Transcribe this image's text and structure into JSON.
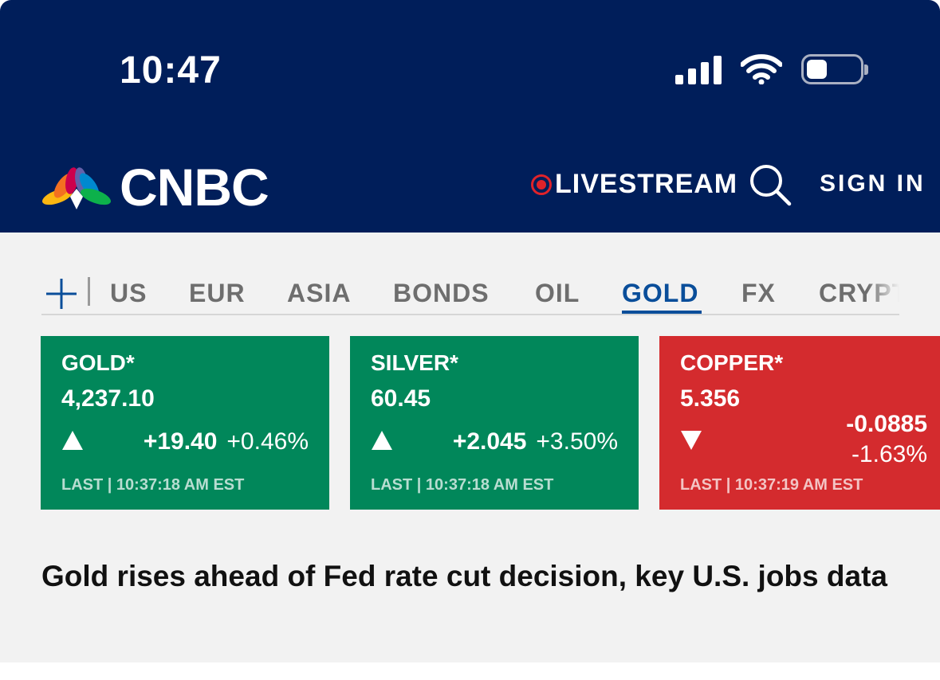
{
  "status_bar": {
    "time": "10:47"
  },
  "header": {
    "brand": "CNBC",
    "livestream_label": "LIVESTREAM",
    "sign_in_label": "SIGN IN",
    "background": "#001e5a",
    "live_color": "#e0232a"
  },
  "tabs": {
    "items": [
      "US",
      "EUR",
      "ASIA",
      "BONDS",
      "OIL",
      "GOLD",
      "FX",
      "CRYPTO"
    ],
    "active": "GOLD",
    "active_color": "#0a4e9a"
  },
  "cards": [
    {
      "name": "GOLD*",
      "price": "4,237.10",
      "direction": "up",
      "change": "+19.40",
      "change_pct": "+0.46%",
      "updated": "LAST | 10:37:18 AM EST",
      "color": "#01875a"
    },
    {
      "name": "SILVER*",
      "price": "60.45",
      "direction": "up",
      "change": "+2.045",
      "change_pct": "+3.50%",
      "updated": "LAST | 10:37:18 AM EST",
      "color": "#01875a"
    },
    {
      "name": "COPPER*",
      "price": "5.356",
      "direction": "down",
      "change": "-0.0885",
      "change_pct": "-1.63%",
      "updated": "LAST | 10:37:19 AM EST",
      "color": "#d42b2e"
    }
  ],
  "headline": "Gold rises ahead of Fed rate cut decision, key U.S. jobs data"
}
